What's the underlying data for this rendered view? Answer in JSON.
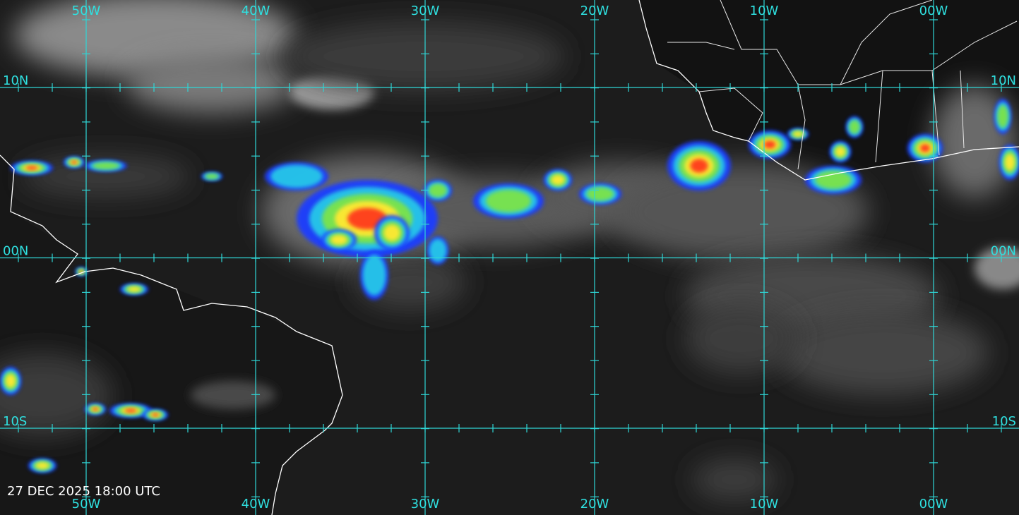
{
  "map": {
    "longitude_labels": [
      "50W",
      "40W",
      "30W",
      "20W",
      "10W",
      "00W"
    ],
    "latitude_labels": [
      "10N",
      "00N",
      "10S"
    ],
    "timestamp": "27 DEC 2025 18:00 UTC"
  }
}
